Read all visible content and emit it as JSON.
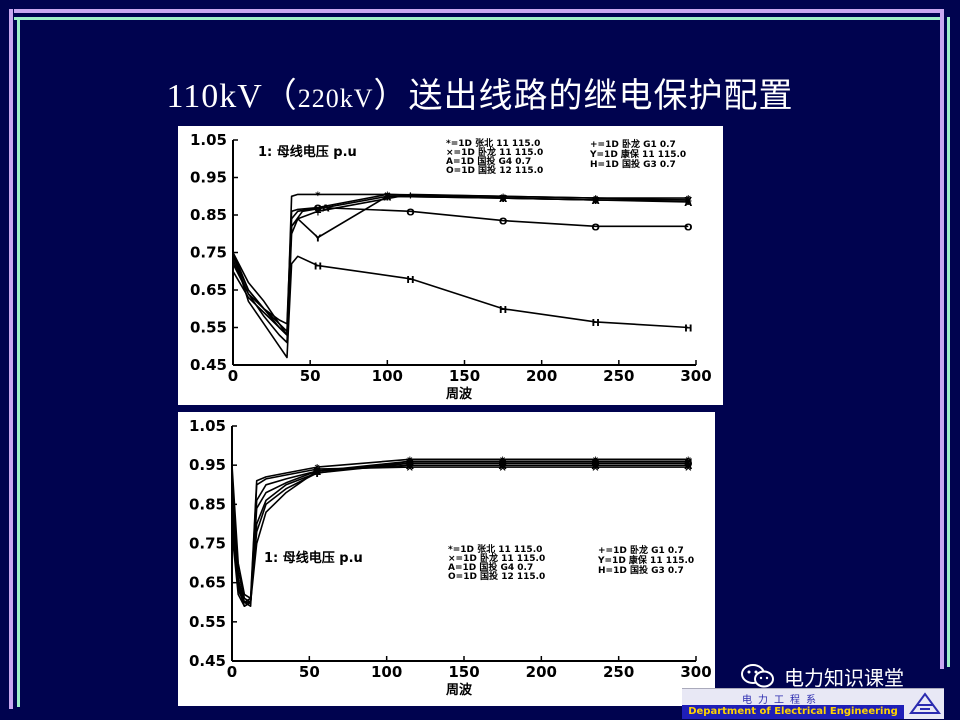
{
  "slide": {
    "title_main_a": "110kV（",
    "title_small": "220kV",
    "title_main_b": "）送出线路的继电保护配置"
  },
  "colors": {
    "background": "#00034f",
    "frame_violet": "#c9a8f0",
    "frame_green": "#9ff0c8",
    "curve": "#000000"
  },
  "charts": [
    {
      "annotation": "1: 母线电压 p.u",
      "xlabel": "周波",
      "x_ticks": [
        "0",
        "50",
        "100",
        "150",
        "200",
        "250",
        "300"
      ],
      "y_ticks": [
        "1.05",
        "0.95",
        "0.85",
        "0.75",
        "0.65",
        "0.55",
        "0.45"
      ],
      "legend_left": [
        "*=1D 张北 11 115.0",
        "×=1D 卧龙 11 115.0",
        "A=1D 国投 G4 0.7",
        "O=1D 国投 12 115.0"
      ],
      "legend_right": [
        "+=1D 卧龙 G1 0.7",
        "Y=1D 康保 11 115.0",
        "H=1D 国投 G3 0.7"
      ]
    },
    {
      "annotation": "1: 母线电压 p.u",
      "xlabel": "周波",
      "x_ticks": [
        "0",
        "50",
        "100",
        "150",
        "200",
        "250",
        "300"
      ],
      "y_ticks": [
        "1.05",
        "0.95",
        "0.85",
        "0.75",
        "0.65",
        "0.55",
        "0.45"
      ],
      "legend_left": [
        "*=1D 张北 11 115.0",
        "×=1D 卧龙 11 115.0",
        "A=1D 国投 G4 0.7",
        "O=1D 国投 12 115.0"
      ],
      "legend_right": [
        "+=1D 卧龙 G1 0.7",
        "Y=1D 康保 11 115.0",
        "H=1D 国投 G3 0.7"
      ]
    }
  ],
  "chart_data": [
    {
      "type": "line",
      "xlim": [
        0,
        300
      ],
      "ylim": [
        0.45,
        1.05
      ],
      "series": [
        {
          "marker": "*",
          "x": [
            0,
            10,
            20,
            30,
            35,
            38,
            42,
            55,
            100,
            175,
            235,
            295
          ],
          "y": [
            0.75,
            0.65,
            0.6,
            0.55,
            0.53,
            0.9,
            0.905,
            0.905,
            0.905,
            0.9,
            0.895,
            0.895
          ]
        },
        {
          "marker": "×",
          "x": [
            0,
            10,
            20,
            30,
            35,
            38,
            42,
            55,
            100,
            175,
            235,
            295
          ],
          "y": [
            0.72,
            0.64,
            0.6,
            0.57,
            0.56,
            0.86,
            0.865,
            0.87,
            0.905,
            0.895,
            0.89,
            0.89
          ]
        },
        {
          "marker": "A",
          "x": [
            0,
            10,
            20,
            30,
            35,
            38,
            45,
            60,
            100,
            175,
            235,
            295
          ],
          "y": [
            0.7,
            0.63,
            0.59,
            0.55,
            0.53,
            0.82,
            0.86,
            0.87,
            0.9,
            0.895,
            0.89,
            0.885
          ]
        },
        {
          "marker": "O",
          "x": [
            0,
            10,
            20,
            30,
            35,
            38,
            42,
            55,
            115,
            175,
            235,
            295
          ],
          "y": [
            0.74,
            0.65,
            0.6,
            0.56,
            0.54,
            0.84,
            0.86,
            0.87,
            0.86,
            0.835,
            0.82,
            0.82
          ]
        },
        {
          "marker": "+",
          "x": [
            0,
            10,
            20,
            30,
            35,
            38,
            42,
            55,
            115,
            175,
            235,
            295
          ],
          "y": [
            0.75,
            0.67,
            0.62,
            0.56,
            0.53,
            0.82,
            0.84,
            0.86,
            0.905,
            0.9,
            0.895,
            0.89
          ]
        },
        {
          "marker": "Y",
          "x": [
            0,
            10,
            20,
            30,
            35,
            38,
            42,
            55,
            100,
            175,
            235,
            295
          ],
          "y": [
            0.73,
            0.64,
            0.58,
            0.53,
            0.51,
            0.8,
            0.84,
            0.79,
            0.9,
            0.895,
            0.89,
            0.89
          ]
        },
        {
          "marker": "H",
          "x": [
            0,
            10,
            20,
            30,
            35,
            38,
            42,
            55,
            115,
            175,
            235,
            295
          ],
          "y": [
            0.75,
            0.62,
            0.56,
            0.5,
            0.47,
            0.72,
            0.74,
            0.715,
            0.68,
            0.6,
            0.565,
            0.55
          ]
        }
      ]
    },
    {
      "type": "line",
      "xlim": [
        0,
        300
      ],
      "ylim": [
        0.45,
        1.05
      ],
      "series": [
        {
          "marker": "*",
          "x": [
            0,
            4,
            8,
            12,
            16,
            22,
            35,
            55,
            115,
            175,
            235,
            295
          ],
          "y": [
            0.95,
            0.7,
            0.62,
            0.61,
            0.91,
            0.92,
            0.93,
            0.945,
            0.965,
            0.965,
            0.965,
            0.965
          ]
        },
        {
          "marker": "×",
          "x": [
            0,
            4,
            8,
            12,
            16,
            22,
            35,
            55,
            115,
            175,
            235,
            295
          ],
          "y": [
            0.93,
            0.68,
            0.61,
            0.6,
            0.9,
            0.915,
            0.925,
            0.94,
            0.945,
            0.945,
            0.945,
            0.945
          ]
        },
        {
          "marker": "A",
          "x": [
            0,
            4,
            8,
            12,
            16,
            22,
            35,
            55,
            115,
            175,
            235,
            295
          ],
          "y": [
            0.9,
            0.66,
            0.6,
            0.59,
            0.86,
            0.9,
            0.915,
            0.935,
            0.95,
            0.95,
            0.95,
            0.95
          ]
        },
        {
          "marker": "O",
          "x": [
            0,
            4,
            8,
            12,
            16,
            22,
            35,
            55,
            115,
            175,
            235,
            295
          ],
          "y": [
            0.88,
            0.65,
            0.6,
            0.6,
            0.84,
            0.88,
            0.905,
            0.935,
            0.955,
            0.955,
            0.955,
            0.955
          ]
        },
        {
          "marker": "+",
          "x": [
            0,
            4,
            8,
            12,
            16,
            22,
            35,
            55,
            115,
            175,
            235,
            295
          ],
          "y": [
            0.85,
            0.64,
            0.59,
            0.6,
            0.8,
            0.86,
            0.9,
            0.93,
            0.955,
            0.955,
            0.955,
            0.955
          ]
        },
        {
          "marker": "Y",
          "x": [
            0,
            4,
            8,
            12,
            16,
            22,
            35,
            55,
            115,
            175,
            235,
            295
          ],
          "y": [
            0.82,
            0.63,
            0.6,
            0.61,
            0.78,
            0.85,
            0.89,
            0.93,
            0.96,
            0.96,
            0.96,
            0.96
          ]
        },
        {
          "marker": "H",
          "x": [
            0,
            4,
            8,
            12,
            16,
            22,
            35,
            55,
            115,
            175,
            235,
            295
          ],
          "y": [
            0.78,
            0.62,
            0.59,
            0.6,
            0.75,
            0.83,
            0.88,
            0.935,
            0.96,
            0.96,
            0.96,
            0.96
          ]
        }
      ]
    }
  ],
  "watermark": {
    "text": "电力知识课堂",
    "icon": "wechat-icon"
  },
  "dept_logo": {
    "cn": "电力工程系",
    "en": "Department of Electrical Engineering"
  }
}
